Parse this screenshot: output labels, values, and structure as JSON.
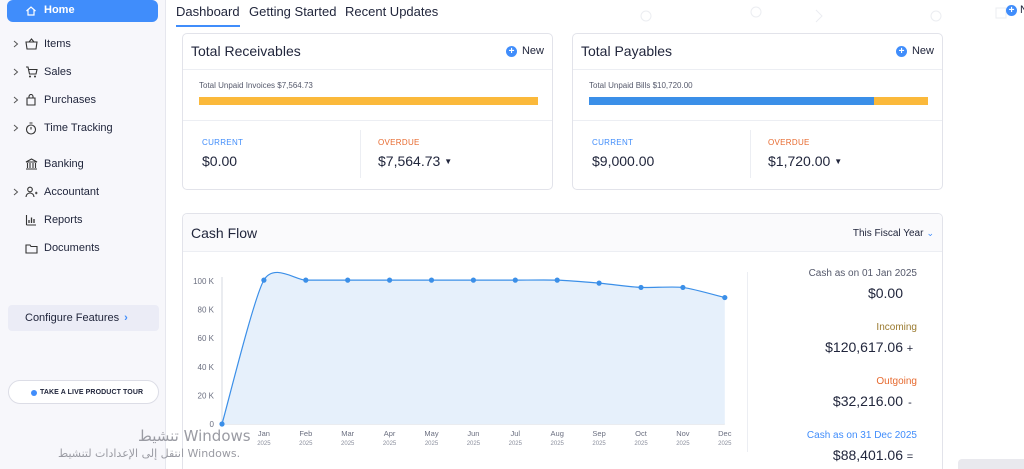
{
  "sidebar": {
    "items": [
      {
        "label": "Home",
        "icon": "home-icon",
        "active": true
      },
      {
        "label": "Items",
        "icon": "basket-icon"
      },
      {
        "label": "Sales",
        "icon": "cart-icon"
      },
      {
        "label": "Purchases",
        "icon": "bag-icon"
      },
      {
        "label": "Time Tracking",
        "icon": "stopwatch-icon"
      },
      {
        "label": "Banking",
        "icon": "bank-icon"
      },
      {
        "label": "Accountant",
        "icon": "accountant-icon"
      },
      {
        "label": "Reports",
        "icon": "reports-icon"
      },
      {
        "label": "Documents",
        "icon": "folder-icon"
      }
    ],
    "configure_label": "Configure Features",
    "tour_label": "TAKE A LIVE PRODUCT TOUR"
  },
  "tabs": {
    "items": [
      "Dashboard",
      "Getting Started",
      "Recent Updates"
    ],
    "active": "Dashboard",
    "new_label": "N"
  },
  "receivables": {
    "title": "Total Receivables",
    "new_label": "New",
    "total_label": "Total Unpaid Invoices $7,564.73",
    "current_label": "CURRENT",
    "current_value": "$0.00",
    "overdue_label": "OVERDUE",
    "overdue_value": "$7,564.73",
    "current_fraction": 0.0
  },
  "payables": {
    "title": "Total Payables",
    "new_label": "New",
    "total_label": "Total Unpaid Bills $10,720.00",
    "current_label": "CURRENT",
    "current_value": "$9,000.00",
    "overdue_label": "OVERDUE",
    "overdue_value": "$1,720.00",
    "current_fraction": 0.84
  },
  "cashflow": {
    "title": "Cash Flow",
    "period": "This Fiscal Year",
    "opening_label": "Cash as on 01 Jan 2025",
    "opening_value": "$0.00",
    "incoming_label": "Incoming",
    "incoming_value": "$120,617.06",
    "incoming_sign": "+",
    "outgoing_label": "Outgoing",
    "outgoing_value": "$32,216.00",
    "outgoing_sign": "-",
    "closing_label": "Cash as on 31 Dec 2025",
    "closing_value": "$88,401.06",
    "closing_sign": "=",
    "colors": {
      "incoming": "#9a7a2f",
      "outgoing": "#e76a2f",
      "closing": "#408dfb",
      "line": "#3b8fe8",
      "area": "#e6f0fb"
    }
  },
  "chart_data": {
    "type": "area",
    "x": [
      "",
      "Jan",
      "Feb",
      "Mar",
      "Apr",
      "May",
      "Jun",
      "Jul",
      "Aug",
      "Sep",
      "Oct",
      "Nov",
      "Dec"
    ],
    "x_sub": [
      "",
      "2025",
      "2025",
      "2025",
      "2025",
      "2025",
      "2025",
      "2025",
      "2025",
      "2025",
      "2025",
      "2025",
      "2025"
    ],
    "series": [
      {
        "values": [
          0,
          100617,
          100617,
          100617,
          100617,
          100617,
          100617,
          100617,
          100617,
          98500,
          95500,
          95500,
          88401
        ]
      }
    ],
    "yticks": [
      "0",
      "20 K",
      "40 K",
      "60 K",
      "80 K",
      "100 K"
    ],
    "ylim": [
      0,
      100000
    ],
    "grid": false
  },
  "watermark": {
    "line1": "تنشيط Windows",
    "line2": "انتقل إلى الإعدادات لتنشيط Windows."
  }
}
